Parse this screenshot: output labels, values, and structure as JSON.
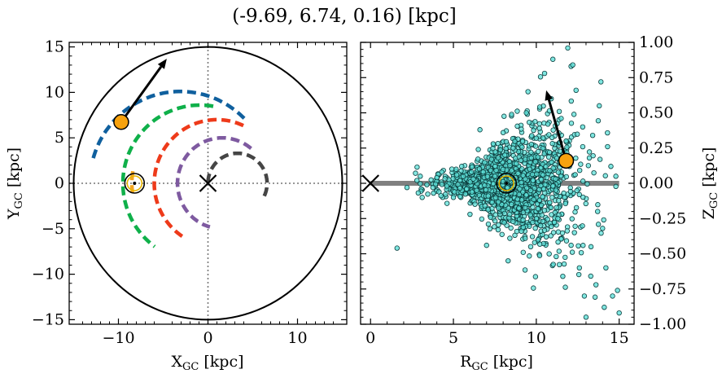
{
  "title": "(-9.69, 6.74, 0.16) [kpc]",
  "chart_data": [
    {
      "type": "scatter",
      "panel": "left",
      "xlabel": "X",
      "xlabel_sub": "GC",
      "xlabel_unit": " [kpc]",
      "ylabel": "Y",
      "ylabel_sub": "GC",
      "ylabel_unit": " [kpc]",
      "xlim": [
        -15.5,
        15.5
      ],
      "ylim": [
        -15.5,
        15.5
      ],
      "xticks": [
        -10,
        0,
        10
      ],
      "yticks": [
        -15,
        -10,
        -5,
        0,
        5,
        10,
        15
      ],
      "tick_labels_x": [
        "−10",
        "0",
        "10"
      ],
      "tick_labels_y": [
        "−15",
        "−10",
        "−5",
        "0",
        "5",
        "10",
        "15"
      ],
      "galaxy_circle_radius": 15,
      "galactic_center": [
        0,
        0
      ],
      "sun_position": [
        -8.2,
        0
      ],
      "star_position": [
        -9.69,
        6.74
      ],
      "velocity_arrow": {
        "from": [
          -9.69,
          6.74
        ],
        "to": [
          -4.6,
          13.7
        ]
      },
      "arms": [
        {
          "color": "#10609e",
          "radius": 10.1,
          "theta_deg": [
            45,
            165
          ],
          "x_offset": -3.1
        },
        {
          "color": "#0fb04a",
          "radius": 8.6,
          "theta_deg": [
            80,
            235
          ],
          "x_offset": -0.9
        },
        {
          "color": "#f5a623",
          "radius": 8.5,
          "theta_deg": [
            171,
            188
          ],
          "x_offset": 0
        },
        {
          "color": "#ee3a1a",
          "radius": 7.0,
          "theta_deg": [
            65,
            240
          ],
          "x_offset": 1.0
        },
        {
          "color": "#7e5aa0",
          "radius": 5.0,
          "theta_deg": [
            50,
            255
          ],
          "x_offset": 1.6
        },
        {
          "color": "#454545",
          "radius": 3.3,
          "theta_deg": [
            -25,
            180
          ],
          "x_offset": 3.3
        }
      ]
    },
    {
      "type": "scatter",
      "panel": "right",
      "xlabel": "R",
      "xlabel_sub": "GC",
      "xlabel_unit": " [kpc]",
      "ylabel": "Z",
      "ylabel_sub": "GC",
      "ylabel_unit": " [kpc]",
      "xlim": [
        -0.6,
        15.9
      ],
      "ylim": [
        -1.0,
        1.0
      ],
      "xticks": [
        0,
        5,
        10,
        15
      ],
      "yticks": [
        -1.0,
        -0.75,
        -0.5,
        -0.25,
        0.0,
        0.25,
        0.5,
        0.75,
        1.0
      ],
      "tick_labels_x": [
        "0",
        "5",
        "10",
        "15"
      ],
      "tick_labels_y": [
        "−1.00",
        "−0.75",
        "−0.50",
        "−0.25",
        "0.00",
        "0.25",
        "0.50",
        "0.75",
        "1.00"
      ],
      "disk_line": {
        "x": [
          0,
          15
        ],
        "z": 0
      },
      "galactic_center": [
        0,
        0
      ],
      "sun_position": [
        8.2,
        0
      ],
      "star_position": [
        11.8,
        0.16
      ],
      "velocity_arrow": {
        "from": [
          11.8,
          0.16
        ],
        "to": [
          10.6,
          0.66
        ]
      },
      "scatter_points": [
        {
          "R": 8.2,
          "z": 0.0
        },
        {
          "R": 7.5,
          "z": 0.05
        },
        {
          "R": 9.0,
          "z": -0.04
        },
        {
          "R": 6.8,
          "z": 0.08
        },
        {
          "R": 9.6,
          "z": 0.1
        },
        {
          "R": 7.1,
          "z": -0.09
        },
        {
          "R": 8.8,
          "z": 0.14
        },
        {
          "R": 8.5,
          "z": -0.15
        },
        {
          "R": 10.2,
          "z": -0.12
        },
        {
          "R": 6.2,
          "z": 0.03
        },
        {
          "R": 5.8,
          "z": -0.04
        },
        {
          "R": 5.2,
          "z": 0.06
        },
        {
          "R": 4.6,
          "z": -0.02
        },
        {
          "R": 4.0,
          "z": 0.04
        },
        {
          "R": 3.4,
          "z": -0.01
        },
        {
          "R": 2.8,
          "z": 0.02
        },
        {
          "R": 2.2,
          "z": -0.03
        },
        {
          "R": 1.6,
          "z": -0.46
        },
        {
          "R": 10.8,
          "z": 0.22
        },
        {
          "R": 11.3,
          "z": -0.25
        },
        {
          "R": 11.8,
          "z": 0.3
        },
        {
          "R": 12.3,
          "z": -0.35
        },
        {
          "R": 12.8,
          "z": 0.4
        },
        {
          "R": 13.3,
          "z": -0.45
        },
        {
          "R": 13.8,
          "z": 0.55
        },
        {
          "R": 14.2,
          "z": -0.6
        },
        {
          "R": 14.6,
          "z": -0.8
        },
        {
          "R": 15.0,
          "z": -0.92
        },
        {
          "R": 14.9,
          "z": -0.76
        },
        {
          "R": 14.1,
          "z": -0.88
        },
        {
          "R": 13.6,
          "z": -0.72
        },
        {
          "R": 13.0,
          "z": -0.95
        },
        {
          "R": 12.6,
          "z": -0.6
        },
        {
          "R": 11.9,
          "z": 0.96
        },
        {
          "R": 11.0,
          "z": 0.88
        },
        {
          "R": 10.5,
          "z": 0.78
        },
        {
          "R": 12.2,
          "z": 0.84
        },
        {
          "R": 13.9,
          "z": 0.72
        },
        {
          "R": 9.4,
          "z": 0.5
        },
        {
          "R": 9.9,
          "z": -0.42
        },
        {
          "R": 8.0,
          "z": 0.36
        },
        {
          "R": 7.7,
          "z": -0.33
        },
        {
          "R": 6.5,
          "z": 0.24
        },
        {
          "R": 6.0,
          "z": -0.22
        },
        {
          "R": 10.0,
          "z": 0.32
        },
        {
          "R": 10.6,
          "z": -0.38
        },
        {
          "R": 11.5,
          "z": 0.46
        },
        {
          "R": 11.2,
          "z": -0.52
        },
        {
          "R": 12.0,
          "z": 0.12
        },
        {
          "R": 12.6,
          "z": -0.08
        },
        {
          "R": 13.2,
          "z": 0.18
        },
        {
          "R": 13.7,
          "z": -0.2
        },
        {
          "R": 14.3,
          "z": 0.26
        },
        {
          "R": 14.8,
          "z": 0.05
        },
        {
          "R": 9.2,
          "z": -0.26
        },
        {
          "R": 8.6,
          "z": 0.25
        },
        {
          "R": 7.3,
          "z": 0.17
        },
        {
          "R": 6.9,
          "z": -0.16
        },
        {
          "R": 5.5,
          "z": 0.12
        },
        {
          "R": 5.0,
          "z": -0.1
        },
        {
          "R": 4.3,
          "z": 0.08
        },
        {
          "R": 3.8,
          "z": -0.07
        },
        {
          "R": 3.0,
          "z": 0.05
        },
        {
          "R": 9.8,
          "z": 0.02
        },
        {
          "R": 10.4,
          "z": 0.06
        },
        {
          "R": 11.0,
          "z": -0.02
        },
        {
          "R": 7.9,
          "z": -0.06
        },
        {
          "R": 8.9,
          "z": 0.07
        },
        {
          "R": 6.4,
          "z": -0.05
        },
        {
          "R": 10.9,
          "z": 0.6
        },
        {
          "R": 11.6,
          "z": -0.66
        },
        {
          "R": 12.4,
          "z": 0.66
        },
        {
          "R": 12.9,
          "z": -0.8
        },
        {
          "R": 9.5,
          "z": 0.65
        },
        {
          "R": 8.3,
          "z": -0.55
        },
        {
          "R": 7.0,
          "z": -0.44
        },
        {
          "R": 13.4,
          "z": 0.34
        },
        {
          "R": 14.0,
          "z": -0.32
        },
        {
          "R": 14.5,
          "z": 0.12
        },
        {
          "R": 11.4,
          "z": 0.15
        },
        {
          "R": 10.1,
          "z": -0.18
        },
        {
          "R": 8.1,
          "z": 0.2
        },
        {
          "R": 7.4,
          "z": 0.28
        },
        {
          "R": 9.1,
          "z": -0.34
        },
        {
          "R": 6.6,
          "z": 0.38
        },
        {
          "R": 12.1,
          "z": -0.44
        },
        {
          "R": 10.7,
          "z": 0.42
        },
        {
          "R": 11.7,
          "z": -0.1
        },
        {
          "R": 9.7,
          "z": 0.18
        },
        {
          "R": 8.4,
          "z": -0.22
        }
      ]
    }
  ]
}
